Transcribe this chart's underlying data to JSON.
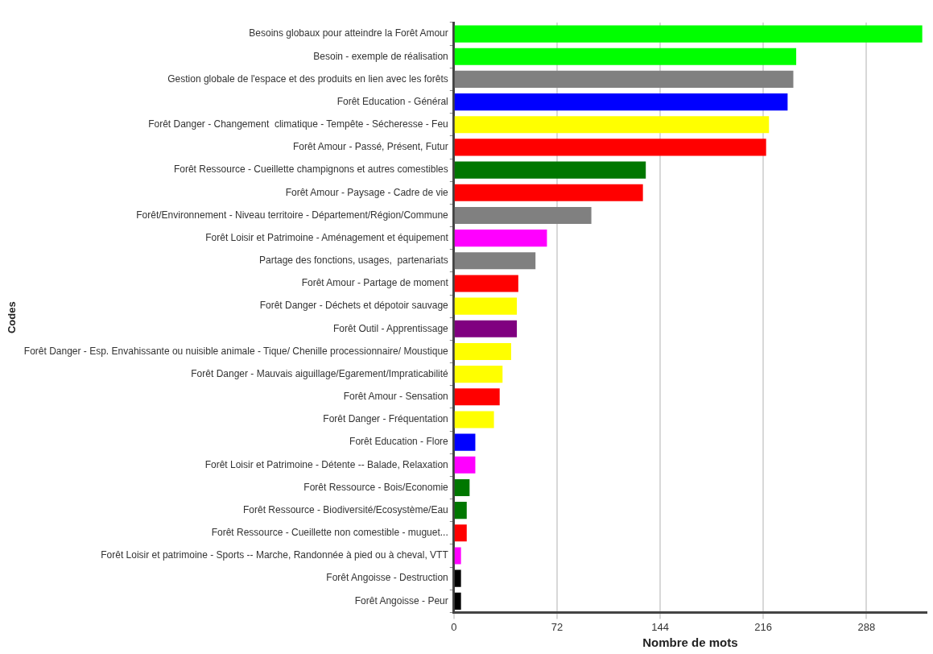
{
  "chart_data": {
    "type": "bar",
    "orientation": "horizontal",
    "xlabel": "Nombre de mots",
    "ylabel": "Codes",
    "categories": [
      "Besoins globaux pour atteindre la Forêt Amour",
      "Besoin - exemple de réalisation",
      "Gestion globale de l'espace et des produits en lien avec les forêts",
      "Forêt Education - Général",
      "Forêt Danger - Changement  climatique - Tempête - Sécheresse - Feu",
      "Forêt Amour - Passé, Présent, Futur",
      "Forêt Ressource - Cueillette champignons et autres comestibles",
      "Forêt Amour - Paysage - Cadre de vie",
      "Forêt/Environnement - Niveau territoire - Département/Région/Commune",
      "Forêt Loisir et Patrimoine - Aménagement et équipement",
      "Partage des fonctions, usages,  partenariats",
      "Forêt Amour - Partage de moment",
      "Forêt Danger - Déchets et dépotoir sauvage",
      "Forêt Outil - Apprentissage",
      "Forêt Danger - Esp. Envahissante ou nuisible animale - Tique/ Chenille processionnaire/ Moustique",
      "Forêt Danger - Mauvais aiguillage/Egarement/Impraticabilité",
      "Forêt Amour - Sensation",
      "Forêt Danger - Fréquentation",
      "Forêt Education - Flore",
      "Forêt Loisir et Patrimoine - Détente -- Balade, Relaxation",
      "Forêt Ressource - Bois/Economie",
      "Forêt Ressource - Biodiversité/Ecosystème/Eau",
      "Forêt Ressource - Cueillette non comestible - muguet...",
      "Forêt Loisir et patrimoine - Sports -- Marche, Randonnée à pied ou à cheval, VTT",
      "Forêt Angoisse - Destruction",
      "Forêt Angoisse - Peur"
    ],
    "values": [
      327,
      239,
      237,
      233,
      220,
      218,
      134,
      132,
      96,
      65,
      57,
      45,
      44,
      44,
      40,
      34,
      32,
      28,
      15,
      15,
      11,
      9,
      9,
      5,
      5,
      5
    ],
    "colors": [
      "#00ff00",
      "#00ff00",
      "#808080",
      "#0000ff",
      "#ffff00",
      "#ff0000",
      "#007700",
      "#ff0000",
      "#808080",
      "#ff00ff",
      "#808080",
      "#ff0000",
      "#ffff00",
      "#800080",
      "#ffff00",
      "#ffff00",
      "#ff0000",
      "#ffff00",
      "#0000ff",
      "#ff00ff",
      "#007700",
      "#007700",
      "#ff0000",
      "#ff00ff",
      "#000000",
      "#000000"
    ],
    "xlim": [
      0,
      330
    ],
    "xticks": [
      0,
      72,
      144,
      216,
      288
    ],
    "grid": "x",
    "legend": false
  }
}
